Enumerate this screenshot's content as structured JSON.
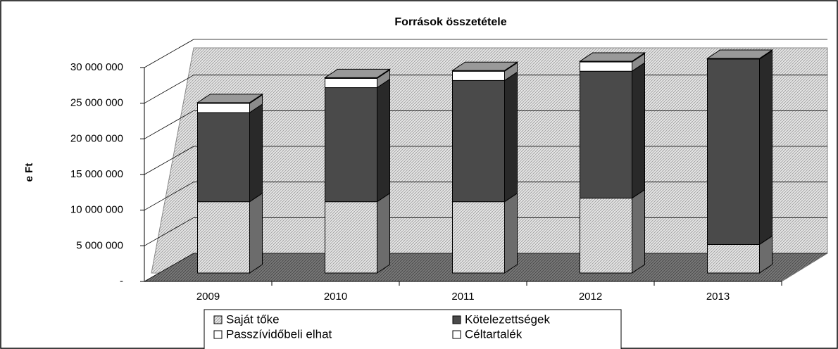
{
  "chart_data": {
    "type": "stacked-bar-3d",
    "title": "Források összetétele",
    "y_label": "e Ft",
    "categories": [
      "2009",
      "2010",
      "2011",
      "2012",
      "2013"
    ],
    "series": [
      {
        "name": "Saját tőke",
        "color": "#c4c4c4",
        "values": [
          10000000,
          10000000,
          10000000,
          10500000,
          4000000
        ]
      },
      {
        "name": "Kötelezettségek",
        "color": "#4a4a4a",
        "values": [
          12500000,
          16000000,
          17000000,
          17800000,
          26000000
        ]
      },
      {
        "name": "Passzívidőbeli elhat",
        "color": "#ffffff",
        "values": [
          1300000,
          1300000,
          1300000,
          1300000,
          0
        ]
      },
      {
        "name": "Céltartalék",
        "color": "#ffffff",
        "values": [
          100000,
          100000,
          100000,
          100000,
          100000
        ]
      }
    ],
    "ylim": [
      0,
      30000000
    ],
    "yticks": [
      {
        "value": 0,
        "label": "-"
      },
      {
        "value": 5000000,
        "label": "5 000 000"
      },
      {
        "value": 10000000,
        "label": "10 000 000"
      },
      {
        "value": 15000000,
        "label": "15 000 000"
      },
      {
        "value": 20000000,
        "label": "20 000 000"
      },
      {
        "value": 25000000,
        "label": "25 000 000"
      },
      {
        "value": 30000000,
        "label": "30 000 000"
      }
    ],
    "grid": true
  }
}
